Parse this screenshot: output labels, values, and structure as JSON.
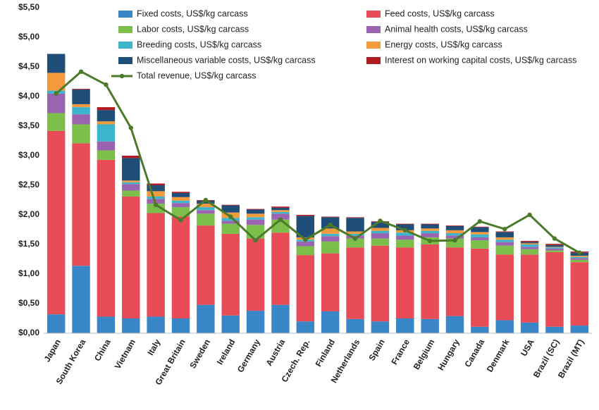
{
  "chart_data": {
    "type": "bar",
    "stacked": true,
    "categories": [
      "Japan",
      "South Korea",
      "China",
      "Vietnam",
      "Italy",
      "Great Britain",
      "Sweden",
      "Ireland",
      "Germany",
      "Austria",
      "Czech. Rep.",
      "Finland",
      "Netherlands",
      "Spain",
      "France",
      "Belgium",
      "Hungary",
      "Canada",
      "Denmark",
      "USA",
      "Brazil (SC)",
      "Brazil (MT)"
    ],
    "series": [
      {
        "name": "Fixed costs, US$/kg carcass",
        "color": "#3a87c8",
        "values": [
          0.32,
          1.14,
          0.28,
          0.25,
          0.28,
          0.25,
          0.48,
          0.3,
          0.38,
          0.48,
          0.2,
          0.37,
          0.24,
          0.2,
          0.25,
          0.24,
          0.29,
          0.11,
          0.22,
          0.18,
          0.11,
          0.13
        ]
      },
      {
        "name": "Feed costs, US$/kg carcass",
        "color": "#e84c57",
        "values": [
          3.1,
          2.07,
          2.65,
          2.06,
          1.75,
          1.72,
          1.34,
          1.38,
          1.22,
          1.22,
          1.12,
          0.98,
          1.21,
          1.28,
          1.2,
          1.26,
          1.16,
          1.32,
          1.11,
          1.15,
          1.26,
          1.07
        ]
      },
      {
        "name": "Labor costs, US$/kg carcass",
        "color": "#7bbf4a",
        "values": [
          0.3,
          0.32,
          0.16,
          0.1,
          0.16,
          0.16,
          0.2,
          0.17,
          0.23,
          0.22,
          0.15,
          0.2,
          0.15,
          0.12,
          0.13,
          0.12,
          0.15,
          0.14,
          0.15,
          0.09,
          0.03,
          0.04
        ]
      },
      {
        "name": "Animal health costs, US$/kg carcass",
        "color": "#9b64b0",
        "values": [
          0.33,
          0.17,
          0.15,
          0.11,
          0.08,
          0.07,
          0.06,
          0.05,
          0.09,
          0.1,
          0.08,
          0.09,
          0.05,
          0.09,
          0.07,
          0.07,
          0.05,
          0.05,
          0.06,
          0.04,
          0.03,
          0.03
        ]
      },
      {
        "name": "Breeding costs, US$/kg carcass",
        "color": "#3bb4cc",
        "values": [
          0.05,
          0.12,
          0.29,
          0.03,
          0.04,
          0.04,
          0.05,
          0.05,
          0.04,
          0.03,
          0.03,
          0.04,
          0.03,
          0.04,
          0.05,
          0.04,
          0.04,
          0.05,
          0.04,
          0.04,
          0.02,
          0.02
        ]
      },
      {
        "name": "Energy costs, US$/kg carcass",
        "color": "#f29a3c",
        "values": [
          0.3,
          0.05,
          0.05,
          0.03,
          0.09,
          0.06,
          0.06,
          0.09,
          0.06,
          0.03,
          0.04,
          0.09,
          0.04,
          0.05,
          0.04,
          0.04,
          0.05,
          0.04,
          0.04,
          0.02,
          0.01,
          0.02
        ]
      },
      {
        "name": "Miscellaneous variable costs, US$/kg carcass",
        "color": "#1f4e79",
        "values": [
          0.32,
          0.25,
          0.19,
          0.38,
          0.1,
          0.07,
          0.05,
          0.12,
          0.07,
          0.04,
          0.36,
          0.19,
          0.23,
          0.1,
          0.1,
          0.07,
          0.07,
          0.08,
          0.09,
          0.02,
          0.03,
          0.05
        ]
      },
      {
        "name": "Interest on working capital costs, US$/kg carcass",
        "color": "#b01c22",
        "values": [
          0,
          0.01,
          0.05,
          0.04,
          0.03,
          0.02,
          0.01,
          0.01,
          0.01,
          0.02,
          0.02,
          0.01,
          0.01,
          0.01,
          0.01,
          0.01,
          0.01,
          0.01,
          0.01,
          0.02,
          0.02,
          0.02
        ]
      },
      {
        "name": "Total revenue, US$/kg carcass",
        "color": "#4a7a2a",
        "type": "line",
        "values": [
          4.05,
          4.42,
          4.2,
          3.47,
          2.17,
          1.91,
          2.25,
          1.97,
          1.57,
          1.92,
          1.58,
          1.83,
          1.6,
          1.9,
          1.74,
          1.56,
          1.57,
          1.89,
          1.76,
          2.0,
          1.6,
          1.36
        ]
      }
    ],
    "ylim": [
      0,
      5.5
    ],
    "yticks": [
      {
        "value": 0,
        "label": "$0,00"
      },
      {
        "value": 0.5,
        "label": "$0,50"
      },
      {
        "value": 1,
        "label": "$1,00"
      },
      {
        "value": 1.5,
        "label": "$1,50"
      },
      {
        "value": 2,
        "label": "$2,00"
      },
      {
        "value": 2.5,
        "label": "$2,50"
      },
      {
        "value": 3,
        "label": "$3,00"
      },
      {
        "value": 3.5,
        "label": "$3,50"
      },
      {
        "value": 4,
        "label": "$4,00"
      },
      {
        "value": 4.5,
        "label": "$4,50"
      },
      {
        "value": 5,
        "label": "$5,00"
      },
      {
        "value": 5.5,
        "label": "$5,50"
      }
    ],
    "grid": false
  }
}
